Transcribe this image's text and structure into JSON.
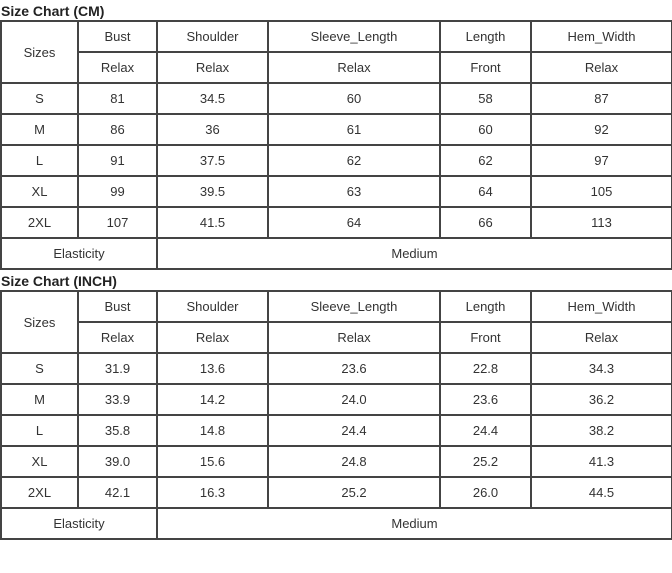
{
  "charts": [
    {
      "title": "Size Chart (CM)",
      "sizes_label": "Sizes",
      "headers": [
        "Bust",
        "Shoulder",
        "Sleeve_Length",
        "Length",
        "Hem_Width"
      ],
      "subheaders": [
        "Relax",
        "Relax",
        "Relax",
        "Front",
        "Relax"
      ],
      "rows": [
        [
          "S",
          "81",
          "34.5",
          "60",
          "58",
          "87"
        ],
        [
          "M",
          "86",
          "36",
          "61",
          "60",
          "92"
        ],
        [
          "L",
          "91",
          "37.5",
          "62",
          "62",
          "97"
        ],
        [
          "XL",
          "99",
          "39.5",
          "63",
          "64",
          "105"
        ],
        [
          "2XL",
          "107",
          "41.5",
          "64",
          "66",
          "113"
        ]
      ],
      "elasticity_label": "Elasticity",
      "elasticity_value": "Medium"
    },
    {
      "title": "Size Chart (INCH)",
      "sizes_label": "Sizes",
      "headers": [
        "Bust",
        "Shoulder",
        "Sleeve_Length",
        "Length",
        "Hem_Width"
      ],
      "subheaders": [
        "Relax",
        "Relax",
        "Relax",
        "Front",
        "Relax"
      ],
      "rows": [
        [
          "S",
          "31.9",
          "13.6",
          "23.6",
          "22.8",
          "34.3"
        ],
        [
          "M",
          "33.9",
          "14.2",
          "24.0",
          "23.6",
          "36.2"
        ],
        [
          "L",
          "35.8",
          "14.8",
          "24.4",
          "24.4",
          "38.2"
        ],
        [
          "XL",
          "39.0",
          "15.6",
          "24.8",
          "25.2",
          "41.3"
        ],
        [
          "2XL",
          "42.1",
          "16.3",
          "25.2",
          "26.0",
          "44.5"
        ]
      ],
      "elasticity_label": "Elasticity",
      "elasticity_value": "Medium"
    }
  ]
}
